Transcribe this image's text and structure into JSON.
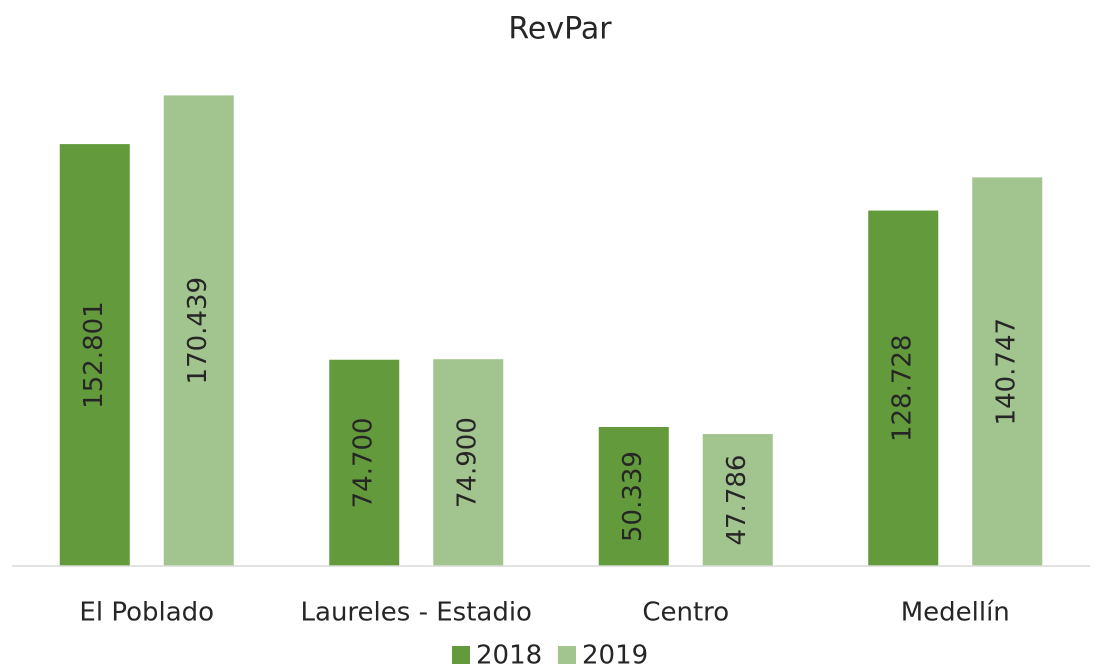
{
  "chart_data": {
    "type": "bar",
    "title": "RevPar",
    "categories": [
      "El Poblado",
      "Laureles - Estadio",
      "Centro",
      "Medellín"
    ],
    "series": [
      {
        "name": "2018",
        "color": "#629a3c",
        "values": [
          152.801,
          74.7,
          50.339,
          128.728
        ],
        "value_labels": [
          "152.801",
          "74.700",
          "50.339",
          "128.728"
        ]
      },
      {
        "name": "2019",
        "color": "#a2c58f",
        "values": [
          170.439,
          74.9,
          47.786,
          140.747
        ],
        "value_labels": [
          "170.439",
          "74.900",
          "47.786",
          "140.747"
        ]
      }
    ],
    "ylim": [
      0,
      180
    ]
  }
}
